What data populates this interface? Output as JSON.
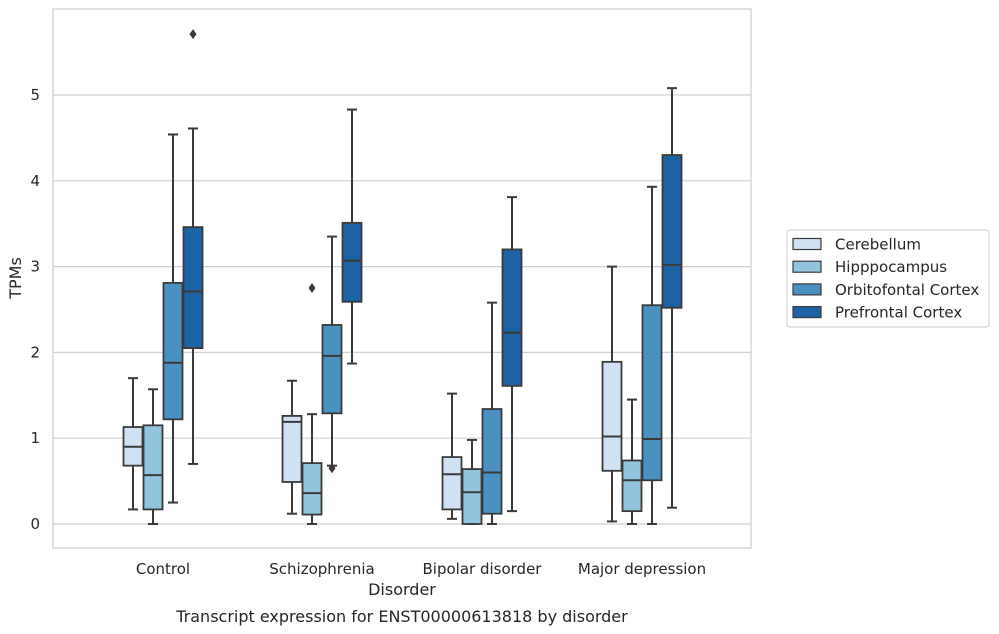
{
  "chart_data": {
    "type": "box",
    "title": "Transcript expression for ENST00000613818 by disorder",
    "xlabel": "Disorder",
    "ylabel": "TPMs",
    "ylim": [
      -0.28,
      6.0
    ],
    "yticks": [
      0,
      1,
      2,
      3,
      4,
      5
    ],
    "grid": "horizontal",
    "legend_position": "right",
    "categories": [
      "Control",
      "Schizophrenia",
      "Bipolar disorder",
      "Major depression"
    ],
    "series": [
      {
        "name": "Cerebellum",
        "color": "#cfe1f2",
        "boxes": [
          {
            "whislo": 0.17,
            "q1": 0.68,
            "med": 0.9,
            "q3": 1.13,
            "whishi": 1.7,
            "fliers": []
          },
          {
            "whislo": 0.12,
            "q1": 0.49,
            "med": 1.19,
            "q3": 1.26,
            "whishi": 1.67,
            "fliers": []
          },
          {
            "whislo": 0.06,
            "q1": 0.17,
            "med": 0.58,
            "q3": 0.78,
            "whishi": 1.52,
            "fliers": []
          },
          {
            "whislo": 0.03,
            "q1": 0.62,
            "med": 1.02,
            "q3": 1.89,
            "whishi": 3.0,
            "fliers": []
          }
        ]
      },
      {
        "name": "Hipppocampus",
        "color": "#93c4de",
        "boxes": [
          {
            "whislo": 0.0,
            "q1": 0.17,
            "med": 0.57,
            "q3": 1.15,
            "whishi": 1.57,
            "fliers": []
          },
          {
            "whislo": 0.0,
            "q1": 0.11,
            "med": 0.36,
            "q3": 0.71,
            "whishi": 1.28,
            "fliers": [
              2.75
            ]
          },
          {
            "whislo": 0.0,
            "q1": 0.0,
            "med": 0.37,
            "q3": 0.64,
            "whishi": 0.98,
            "fliers": []
          },
          {
            "whislo": 0.0,
            "q1": 0.15,
            "med": 0.51,
            "q3": 0.74,
            "whishi": 1.45,
            "fliers": []
          }
        ]
      },
      {
        "name": "Orbitofontal Cortex",
        "color": "#4a91c2",
        "boxes": [
          {
            "whislo": 0.25,
            "q1": 1.22,
            "med": 1.88,
            "q3": 2.81,
            "whishi": 4.54,
            "fliers": []
          },
          {
            "whislo": 0.68,
            "q1": 1.29,
            "med": 1.96,
            "q3": 2.32,
            "whishi": 3.35,
            "fliers": [
              0.65
            ]
          },
          {
            "whislo": 0.0,
            "q1": 0.12,
            "med": 0.6,
            "q3": 1.34,
            "whishi": 2.58,
            "fliers": []
          },
          {
            "whislo": 0.0,
            "q1": 0.51,
            "med": 0.99,
            "q3": 2.55,
            "whishi": 3.93,
            "fliers": []
          }
        ]
      },
      {
        "name": "Prefrontal Cortex",
        "color": "#1e62a6",
        "boxes": [
          {
            "whislo": 0.7,
            "q1": 2.05,
            "med": 2.71,
            "q3": 3.46,
            "whishi": 4.61,
            "fliers": [
              5.71
            ]
          },
          {
            "whislo": 1.87,
            "q1": 2.59,
            "med": 3.07,
            "q3": 3.51,
            "whishi": 4.83,
            "fliers": []
          },
          {
            "whislo": 0.15,
            "q1": 1.61,
            "med": 2.23,
            "q3": 3.2,
            "whishi": 3.81,
            "fliers": []
          },
          {
            "whislo": 0.19,
            "q1": 2.52,
            "med": 3.02,
            "q3": 4.3,
            "whishi": 5.08,
            "fliers": []
          }
        ]
      }
    ]
  },
  "style": {
    "box_edge_color": "#3a3a3a",
    "grid_color": "#d0d0d0",
    "frame_color": "#cccccc"
  }
}
